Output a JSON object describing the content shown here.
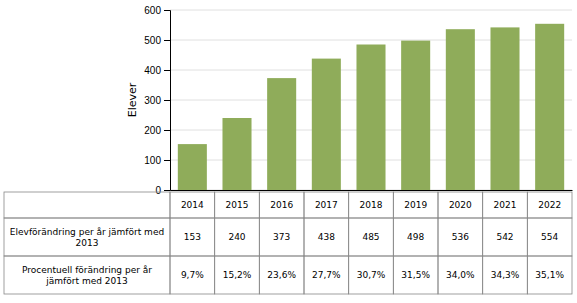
{
  "chart_data": {
    "type": "bar",
    "categories": [
      "2014",
      "2015",
      "2016",
      "2017",
      "2018",
      "2019",
      "2020",
      "2021",
      "2022"
    ],
    "values": [
      153,
      240,
      373,
      438,
      485,
      498,
      536,
      542,
      554
    ],
    "color": "#8fac5a",
    "ylabel": "Elever",
    "ylim": [
      0,
      600
    ],
    "yticks": [
      0,
      100,
      200,
      300,
      400,
      500,
      600
    ],
    "grid": true,
    "tick_labels": "y",
    "table": {
      "rows": [
        {
          "label": "Elevförändring per år jämfört med\n2013",
          "values": [
            "153",
            "240",
            "373",
            "438",
            "485",
            "498",
            "536",
            "542",
            "554"
          ]
        },
        {
          "label": "Procentuell förändring per år\njämfört med 2013",
          "values": [
            "9,7%",
            "15,2%",
            "23,6%",
            "27,7%",
            "30,7%",
            "31,5%",
            "34,0%",
            "34,3%",
            "35,1%"
          ]
        }
      ]
    }
  }
}
